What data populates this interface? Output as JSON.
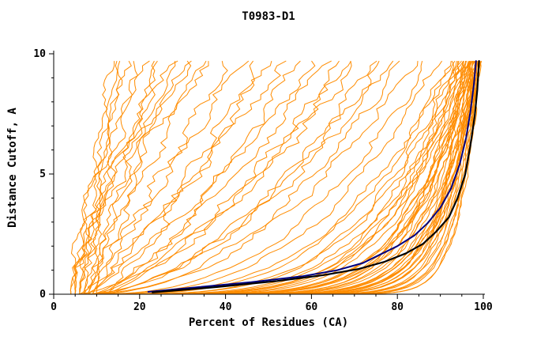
{
  "chart_data": {
    "type": "line",
    "title": "T0983-D1",
    "xlabel": "Percent of Residues (CA)",
    "ylabel": "Distance Cutoff, A",
    "xlim": [
      0,
      100
    ],
    "ylim": [
      0,
      10
    ],
    "x_ticks": [
      0,
      20,
      40,
      60,
      80,
      100
    ],
    "y_ticks": [
      0,
      5,
      10
    ],
    "x_minor_step": 5,
    "y_minor_step": 1,
    "grid": false,
    "legend": "none",
    "colors": {
      "ensemble": "#ff8c00",
      "highlight_black": "#000000",
      "highlight_navy": "#000080",
      "axis": "#000000"
    },
    "ensemble_model": {
      "y_top": 9.7,
      "curve_params_format": [
        "x_at_bottom_pct",
        "x_at_top_pct",
        "shape_exponent",
        "wiggle_amp_pct"
      ],
      "curves": [
        [
          4,
          99.5,
          0.06,
          0.5
        ],
        [
          5,
          99,
          0.08,
          0.6
        ],
        [
          6,
          98.5,
          0.07,
          0.5
        ],
        [
          7,
          99.2,
          0.1,
          0.6
        ],
        [
          5,
          98,
          0.12,
          0.7
        ],
        [
          8,
          97.5,
          0.09,
          0.6
        ],
        [
          6,
          99.4,
          0.05,
          0.4
        ],
        [
          9,
          98.8,
          0.11,
          0.6
        ],
        [
          4,
          97,
          0.14,
          0.8
        ],
        [
          7,
          96.5,
          0.13,
          0.8
        ],
        [
          10,
          99,
          0.07,
          0.5
        ],
        [
          5,
          98.2,
          0.1,
          0.6
        ],
        [
          6,
          97.8,
          0.15,
          0.7
        ],
        [
          8,
          99.1,
          0.06,
          0.5
        ],
        [
          9,
          96,
          0.18,
          0.9
        ],
        [
          11,
          98.4,
          0.09,
          0.6
        ],
        [
          5,
          95.5,
          0.2,
          1.0
        ],
        [
          7,
          98.9,
          0.08,
          0.5
        ],
        [
          6,
          96.8,
          0.16,
          0.8
        ],
        [
          10,
          97.2,
          0.12,
          0.7
        ],
        [
          4,
          98.6,
          0.09,
          0.5
        ],
        [
          8,
          95,
          0.22,
          1.0
        ],
        [
          12,
          98,
          0.1,
          0.6
        ],
        [
          6,
          99.3,
          0.07,
          0.4
        ],
        [
          9,
          97.6,
          0.13,
          0.7
        ],
        [
          5,
          96.2,
          0.19,
          0.9
        ],
        [
          7,
          97,
          0.15,
          0.8
        ],
        [
          11,
          99.2,
          0.06,
          0.4
        ],
        [
          8,
          98.3,
          0.11,
          0.6
        ],
        [
          10,
          95.8,
          0.21,
          1.0
        ],
        [
          6,
          98.7,
          0.08,
          0.5
        ],
        [
          9,
          99,
          0.05,
          0.4
        ],
        [
          12,
          96.5,
          0.17,
          0.8
        ],
        [
          5,
          97.4,
          0.14,
          0.7
        ],
        [
          7,
          95.2,
          0.23,
          1.1
        ],
        [
          8,
          96.9,
          0.16,
          0.8
        ],
        [
          10,
          98.6,
          0.09,
          0.5
        ],
        [
          6,
          94.5,
          0.25,
          1.1
        ],
        [
          11,
          97,
          0.14,
          0.7
        ],
        [
          9,
          94,
          0.27,
          1.2
        ],
        [
          13,
          98.2,
          0.1,
          0.6
        ],
        [
          7,
          93.5,
          0.3,
          1.2
        ],
        [
          12,
          95.5,
          0.2,
          1.0
        ],
        [
          8,
          93,
          0.32,
          1.3
        ],
        [
          14,
          97.8,
          0.12,
          0.6
        ],
        [
          6,
          90,
          0.35,
          1.5
        ],
        [
          8,
          88,
          0.4,
          1.6
        ],
        [
          5,
          85,
          0.45,
          1.7
        ],
        [
          9,
          82,
          0.5,
          1.8
        ],
        [
          7,
          80,
          0.55,
          1.8
        ],
        [
          10,
          78,
          0.6,
          1.9
        ],
        [
          6,
          75,
          0.5,
          2.0
        ],
        [
          8,
          72,
          0.65,
          2.0
        ],
        [
          11,
          70,
          0.7,
          2.0
        ],
        [
          5,
          68,
          0.6,
          2.1
        ],
        [
          9,
          65,
          0.75,
          2.1
        ],
        [
          7,
          62,
          0.8,
          2.2
        ],
        [
          10,
          58,
          0.7,
          2.2
        ],
        [
          6,
          55,
          0.85,
          2.3
        ],
        [
          8,
          52,
          0.9,
          2.3
        ],
        [
          12,
          48,
          0.8,
          2.4
        ],
        [
          7,
          45,
          0.95,
          2.4
        ],
        [
          9,
          42,
          1.0,
          2.5
        ],
        [
          5,
          14,
          1.2,
          1.2
        ],
        [
          6,
          16,
          1.0,
          1.4
        ],
        [
          4,
          18,
          1.4,
          1.5
        ],
        [
          7,
          20,
          1.1,
          1.6
        ],
        [
          5,
          22,
          1.5,
          1.7
        ],
        [
          8,
          24,
          0.9,
          1.8
        ],
        [
          6,
          26,
          1.3,
          1.8
        ],
        [
          9,
          28,
          1.0,
          1.9
        ],
        [
          5,
          30,
          1.6,
          2.0
        ],
        [
          7,
          32,
          1.2,
          2.0
        ],
        [
          6,
          34,
          1.8,
          2.1
        ],
        [
          8,
          36,
          1.1,
          2.1
        ],
        [
          4,
          38,
          1.5,
          2.2
        ],
        [
          10,
          15,
          1.9,
          1.2
        ]
      ]
    },
    "highlight_series": [
      {
        "name": "highlight-navy",
        "color": "#000080",
        "width": 2.0,
        "points": [
          [
            22,
            0.1
          ],
          [
            34,
            0.3
          ],
          [
            46,
            0.5
          ],
          [
            58,
            0.75
          ],
          [
            66,
            1.0
          ],
          [
            72,
            1.3
          ],
          [
            76,
            1.65
          ],
          [
            80,
            2.0
          ],
          [
            84,
            2.45
          ],
          [
            87,
            2.95
          ],
          [
            90,
            3.6
          ],
          [
            92.5,
            4.4
          ],
          [
            94.5,
            5.4
          ],
          [
            96,
            6.5
          ],
          [
            97,
            7.6
          ],
          [
            97.8,
            8.7
          ],
          [
            98.3,
            9.7
          ]
        ]
      },
      {
        "name": "highlight-black",
        "color": "#000000",
        "width": 2.2,
        "points": [
          [
            23,
            0.08
          ],
          [
            38,
            0.3
          ],
          [
            52,
            0.55
          ],
          [
            63,
            0.8
          ],
          [
            71,
            1.05
          ],
          [
            77,
            1.35
          ],
          [
            82,
            1.7
          ],
          [
            86,
            2.1
          ],
          [
            89,
            2.6
          ],
          [
            92,
            3.2
          ],
          [
            94,
            4.0
          ],
          [
            95.8,
            5.0
          ],
          [
            97,
            6.2
          ],
          [
            98,
            7.4
          ],
          [
            98.6,
            8.5
          ],
          [
            99,
            9.7
          ]
        ]
      }
    ]
  }
}
